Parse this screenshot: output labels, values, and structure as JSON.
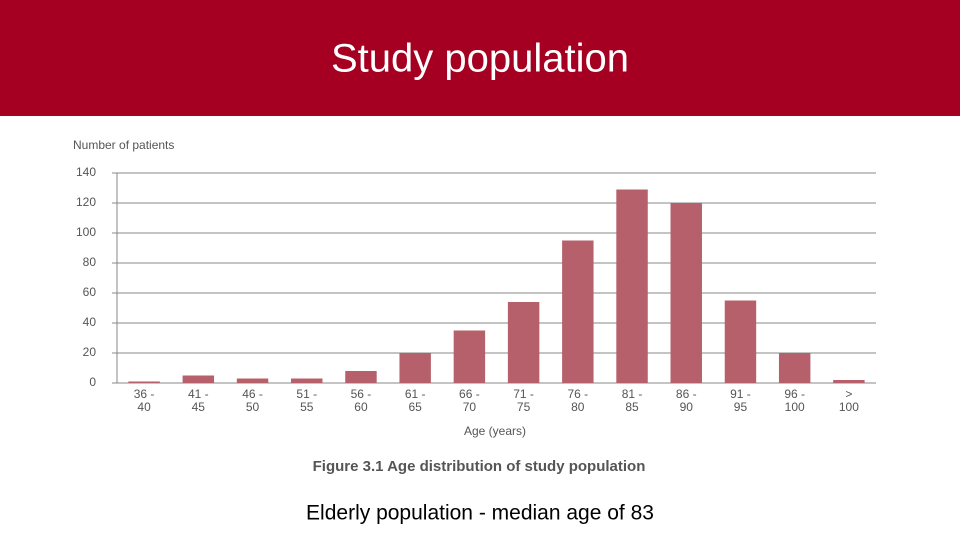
{
  "header": {
    "title": "Study population"
  },
  "chart_data": {
    "type": "bar",
    "y_label": "Number of patients",
    "x_label": "Age (years)",
    "caption": "Figure 3.1 Age distribution of study population",
    "categories": [
      "36 -\n40",
      "41 -\n45",
      "46 -\n50",
      "51 -\n55",
      "56 -\n60",
      "61 -\n65",
      "66 -\n70",
      "71 -\n75",
      "76 -\n80",
      "81 -\n85",
      "86 -\n90",
      "91 -\n95",
      "96 -\n100",
      ">\n100"
    ],
    "values": [
      1,
      5,
      3,
      3,
      8,
      20,
      35,
      54,
      95,
      129,
      120,
      55,
      20,
      2
    ],
    "color": "#b5606b",
    "ylim": [
      0,
      140
    ],
    "yticks": [
      0,
      20,
      40,
      60,
      80,
      100,
      120,
      140
    ],
    "grid": true
  },
  "footer": {
    "text": "Elderly population - median age of 83"
  }
}
